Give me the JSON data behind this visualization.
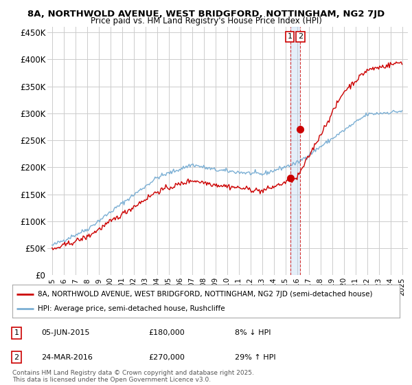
{
  "title1": "8A, NORTHWOLD AVENUE, WEST BRIDGFORD, NOTTINGHAM, NG2 7JD",
  "title2": "Price paid vs. HM Land Registry's House Price Index (HPI)",
  "ylabel_ticks": [
    "£0",
    "£50K",
    "£100K",
    "£150K",
    "£200K",
    "£250K",
    "£300K",
    "£350K",
    "£400K",
    "£450K"
  ],
  "ytick_vals": [
    0,
    50000,
    100000,
    150000,
    200000,
    250000,
    300000,
    350000,
    400000,
    450000
  ],
  "x_start_year": 1995,
  "x_end_year": 2025,
  "vline_x1": 2015.43,
  "vline_x2": 2016.23,
  "sale1": {
    "date": "05-JUN-2015",
    "price": 180000,
    "label": "8% ↓ HPI"
  },
  "sale2": {
    "date": "24-MAR-2016",
    "price": 270000,
    "label": "29% ↑ HPI"
  },
  "legend_line1": "8A, NORTHWOLD AVENUE, WEST BRIDGFORD, NOTTINGHAM, NG2 7JD (semi-detached house)",
  "legend_line2": "HPI: Average price, semi-detached house, Rushcliffe",
  "footnote": "Contains HM Land Registry data © Crown copyright and database right 2025.\nThis data is licensed under the Open Government Licence v3.0.",
  "line_color_red": "#cc0000",
  "line_color_blue": "#7bafd4",
  "background_color": "#ffffff",
  "grid_color": "#cccccc"
}
